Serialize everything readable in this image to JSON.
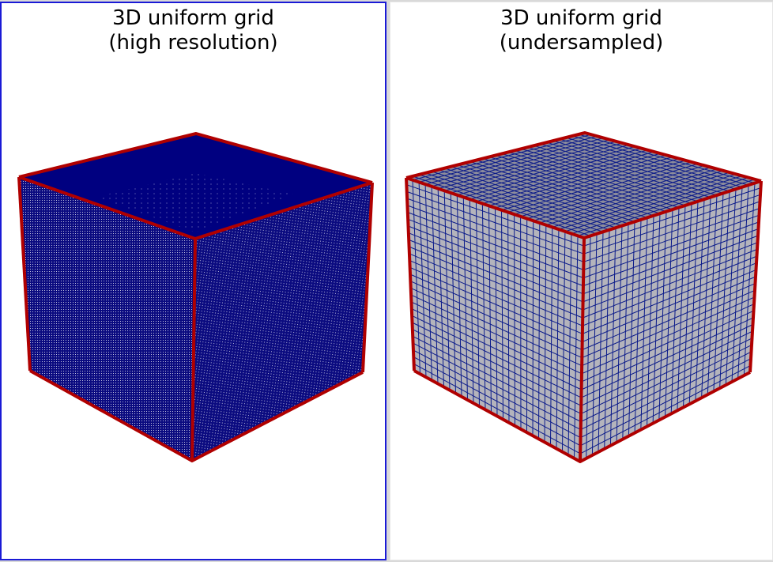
{
  "viewports": [
    {
      "title_line1": "3D uniform grid",
      "title_line2": "(high resolution)",
      "active": true,
      "face_color": "#0b0b80",
      "grid_color": "#ffffff",
      "edge_color": "#b00000"
    },
    {
      "title_line1": "3D uniform grid",
      "title_line2": "(undersampled)",
      "active": false,
      "face_color": "#b4b4bc",
      "grid_color": "#0a1a8a",
      "edge_color": "#b00000"
    }
  ],
  "colors": {
    "active_border": "#1a1ad6",
    "background": "#ffffff",
    "divider": "#d9d9d9"
  }
}
